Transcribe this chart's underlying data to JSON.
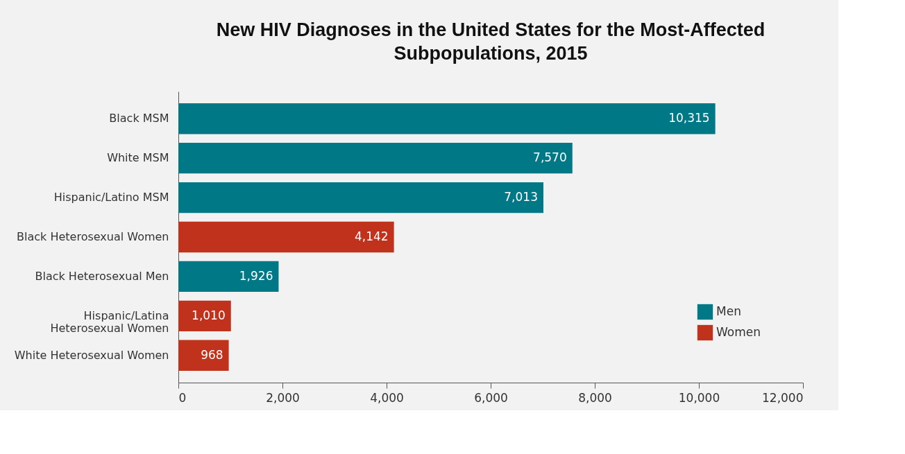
{
  "chart_data": {
    "type": "bar",
    "orientation": "horizontal",
    "title": "New HIV Diagnoses in the United States for the Most-Affected Subpopulations, 2015",
    "categories": [
      "Black MSM",
      "White MSM",
      "Hispanic/Latino MSM",
      "Black Heterosexual Women",
      "Black Heterosexual Men",
      "Hispanic/Latina Heterosexual Women",
      "White Heterosexual Women"
    ],
    "series": [
      {
        "name": "Men",
        "color": "#007886",
        "values": [
          10315,
          7570,
          7013,
          null,
          1926,
          null,
          null
        ],
        "value_labels": [
          "10,315",
          "7,570",
          "7,013",
          null,
          "1,926",
          null,
          null
        ]
      },
      {
        "name": "Women",
        "color": "#c0321c",
        "values": [
          null,
          null,
          null,
          4142,
          null,
          1010,
          968
        ],
        "value_labels": [
          null,
          null,
          null,
          "4,142",
          null,
          "1,010",
          "968"
        ]
      }
    ],
    "xlim": [
      0,
      12000
    ],
    "xticks": [
      0,
      {
        "value": 2000,
        "label": "2,000"
      },
      {
        "value": 4000,
        "label": "4,000"
      },
      {
        "value": 6000,
        "label": "6,000"
      },
      {
        "value": 8000,
        "label": "8,000"
      },
      {
        "value": 10000,
        "label": "10,000"
      },
      {
        "value": 12000,
        "label": "12,000"
      }
    ],
    "grid": false,
    "legend": "bottom right"
  }
}
